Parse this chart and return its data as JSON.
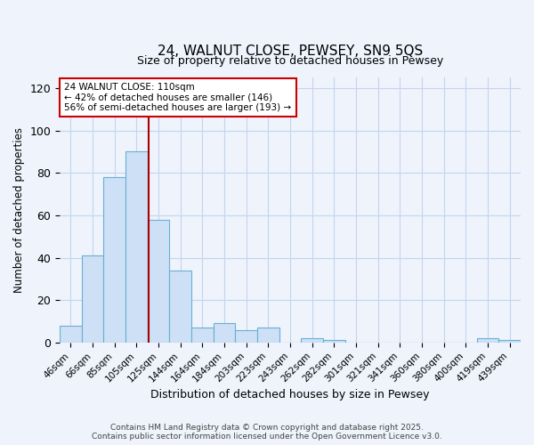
{
  "title": "24, WALNUT CLOSE, PEWSEY, SN9 5QS",
  "subtitle": "Size of property relative to detached houses in Pewsey",
  "xlabel": "Distribution of detached houses by size in Pewsey",
  "ylabel": "Number of detached properties",
  "categories": [
    "46sqm",
    "66sqm",
    "85sqm",
    "105sqm",
    "125sqm",
    "144sqm",
    "164sqm",
    "184sqm",
    "203sqm",
    "223sqm",
    "243sqm",
    "262sqm",
    "282sqm",
    "301sqm",
    "321sqm",
    "341sqm",
    "360sqm",
    "380sqm",
    "400sqm",
    "419sqm",
    "439sqm"
  ],
  "values": [
    8,
    41,
    78,
    90,
    58,
    34,
    7,
    9,
    6,
    7,
    0,
    2,
    1,
    0,
    0,
    0,
    0,
    0,
    0,
    2,
    1
  ],
  "bar_color": "#cde0f5",
  "bar_edge_color": "#6baed6",
  "vline_x": 3.55,
  "vline_color": "#aa0000",
  "ylim": [
    0,
    125
  ],
  "yticks": [
    0,
    20,
    40,
    60,
    80,
    100,
    120
  ],
  "annotation_title": "24 WALNUT CLOSE: 110sqm",
  "annotation_line1": "← 42% of detached houses are smaller (146)",
  "annotation_line2": "56% of semi-detached houses are larger (193) →",
  "footer1": "Contains HM Land Registry data © Crown copyright and database right 2025.",
  "footer2": "Contains public sector information licensed under the Open Government Licence v3.0.",
  "background_color": "#eef3fc",
  "grid_color": "#c5d5ec"
}
